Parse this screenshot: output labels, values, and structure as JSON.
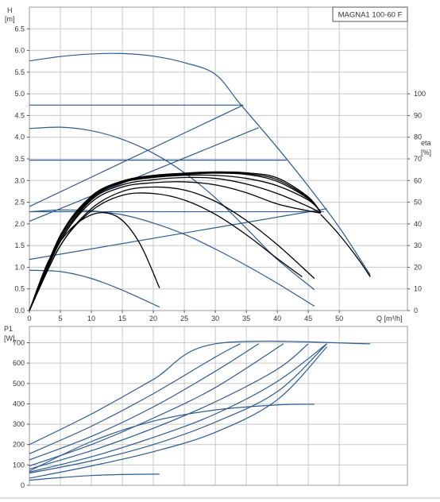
{
  "chart_data": [
    {
      "type": "line",
      "title": "MAGNA1 100-60 F",
      "xlabel": "Q [m³/h]",
      "ylabel_line1": "H",
      "ylabel_line2": "[m]",
      "y2label_line1": "eta",
      "y2label_line2": "[%]",
      "xlim": [
        0,
        61
      ],
      "ylim": [
        0,
        7
      ],
      "y2lim": [
        0,
        140
      ],
      "x_ticks": [
        0,
        5,
        10,
        15,
        20,
        25,
        30,
        35,
        40,
        45,
        50
      ],
      "y_ticks": [
        0,
        0.5,
        1.0,
        1.5,
        2.0,
        2.5,
        3.0,
        3.5,
        4.0,
        4.5,
        5.0,
        5.5,
        6.0,
        6.5
      ],
      "y_tick_labels": [
        "0.0",
        "0.5",
        "1.0",
        "1.5",
        "2.0",
        "2.5",
        "3.0",
        "3.5",
        "4.0",
        "4.5",
        "5.0",
        "5.5",
        "6.0",
        "6.5"
      ],
      "y2_ticks": [
        0,
        10,
        20,
        30,
        40,
        50,
        60,
        70,
        80,
        90,
        100
      ],
      "grid": true,
      "colors": {
        "head": "#2d5c8f",
        "efficiency": "#000000"
      },
      "series": [
        {
          "group": "head",
          "x": [
            0,
            5,
            10,
            15,
            20,
            25,
            30,
            34,
            40,
            45,
            50,
            55
          ],
          "y": [
            5.76,
            5.86,
            5.92,
            5.93,
            5.87,
            5.72,
            5.45,
            4.77,
            3.76,
            2.87,
            1.92,
            0.82
          ]
        },
        {
          "group": "head",
          "x": [
            0,
            34.5
          ],
          "y": [
            4.74,
            4.74
          ]
        },
        {
          "group": "head",
          "x": [
            0,
            41.5
          ],
          "y": [
            3.47,
            3.47
          ]
        },
        {
          "group": "head",
          "x": [
            0,
            47.5
          ],
          "y": [
            2.28,
            2.28
          ]
        },
        {
          "group": "head",
          "x": [
            0,
            34.5
          ],
          "y": [
            2.4,
            4.74
          ]
        },
        {
          "group": "head",
          "x": [
            0,
            37
          ],
          "y": [
            2.06,
            4.22
          ]
        },
        {
          "group": "head",
          "x": [
            0,
            48
          ],
          "y": [
            1.18,
            2.35
          ]
        },
        {
          "group": "head",
          "x": [
            0,
            5,
            10,
            15,
            20,
            25,
            30,
            35,
            40,
            46
          ],
          "y": [
            4.2,
            4.23,
            4.15,
            3.95,
            3.63,
            3.18,
            2.6,
            1.9,
            1.18,
            0.48
          ]
        },
        {
          "group": "head",
          "x": [
            0,
            5,
            10,
            15,
            21
          ],
          "y": [
            0.93,
            0.9,
            0.74,
            0.47,
            0.08
          ]
        },
        {
          "group": "head",
          "x": [
            0,
            5,
            10,
            15,
            20,
            25,
            30,
            35,
            40,
            46
          ],
          "y": [
            2.28,
            2.32,
            2.3,
            2.21,
            2.02,
            1.76,
            1.42,
            1.04,
            0.63,
            0.1
          ]
        },
        {
          "group": "efficiency",
          "x": [
            0,
            3,
            6,
            9,
            12,
            15,
            18,
            21
          ],
          "y": [
            0,
            1.12,
            1.78,
            2.14,
            2.26,
            2.08,
            1.5,
            0.52
          ]
        },
        {
          "group": "efficiency",
          "x": [
            0,
            5,
            10,
            15,
            20,
            25,
            30,
            35,
            40,
            44
          ],
          "y": [
            0,
            1.5,
            2.3,
            2.66,
            2.7,
            2.55,
            2.22,
            1.75,
            1.2,
            0.78
          ]
        },
        {
          "group": "efficiency",
          "x": [
            0,
            5,
            10,
            15,
            20,
            25,
            30,
            35,
            40,
            46
          ],
          "y": [
            0,
            1.5,
            2.35,
            2.75,
            2.85,
            2.78,
            2.52,
            2.08,
            1.52,
            0.74
          ]
        },
        {
          "group": "efficiency",
          "x": [
            0,
            5,
            10,
            15,
            20,
            25,
            30,
            35,
            40,
            45,
            47
          ],
          "y": [
            0,
            1.6,
            2.5,
            2.85,
            2.95,
            2.97,
            2.9,
            2.72,
            2.46,
            2.3,
            2.25
          ]
        },
        {
          "group": "efficiency",
          "x": [
            0,
            5,
            10,
            15,
            20,
            25,
            30,
            35,
            40,
            45,
            47
          ],
          "y": [
            0,
            1.6,
            2.55,
            2.9,
            3.02,
            3.07,
            3.05,
            2.92,
            2.7,
            2.4,
            2.25
          ]
        },
        {
          "group": "efficiency",
          "x": [
            0,
            5,
            10,
            15,
            20,
            25,
            30,
            35,
            40,
            45,
            47
          ],
          "y": [
            0,
            1.65,
            2.58,
            2.95,
            3.07,
            3.12,
            3.12,
            3.05,
            2.88,
            2.55,
            2.28
          ]
        },
        {
          "group": "efficiency",
          "x": [
            0,
            5,
            10,
            15,
            20,
            25,
            30,
            35,
            40,
            45,
            47
          ],
          "y": [
            0,
            1.7,
            2.6,
            2.96,
            3.08,
            3.14,
            3.17,
            3.14,
            2.98,
            2.58,
            2.28
          ]
        },
        {
          "group": "efficiency",
          "x": [
            0,
            5,
            10,
            15,
            20,
            25,
            30,
            35,
            40,
            45,
            47
          ],
          "y": [
            0,
            1.72,
            2.62,
            2.98,
            3.1,
            3.15,
            3.18,
            3.16,
            3.02,
            2.6,
            2.28
          ]
        },
        {
          "group": "efficiency",
          "x": [
            0,
            5,
            10,
            15,
            20,
            25,
            30,
            35,
            40,
            45,
            47
          ],
          "y": [
            0,
            1.74,
            2.64,
            2.99,
            3.12,
            3.17,
            3.2,
            3.18,
            3.06,
            2.62,
            2.26
          ]
        },
        {
          "group": "efficiency",
          "x": [
            47,
            50,
            53,
            55
          ],
          "y": [
            2.22,
            1.75,
            1.2,
            0.78
          ]
        }
      ]
    },
    {
      "type": "line",
      "ylabel_line1": "P1",
      "ylabel_line2": "[W]",
      "xlim": [
        0,
        61
      ],
      "ylim": [
        0,
        780
      ],
      "y_ticks": [
        0,
        100,
        200,
        300,
        400,
        500,
        600,
        700
      ],
      "grid": true,
      "colors": {
        "power": "#2d5c8f"
      },
      "series": [
        {
          "group": "power",
          "x": [
            0,
            10,
            20,
            30,
            55
          ],
          "y": [
            200,
            350,
            520,
            695,
            695
          ]
        },
        {
          "group": "power",
          "x": [
            0,
            10,
            20,
            30,
            34
          ],
          "y": [
            155,
            290,
            450,
            630,
            695
          ]
        },
        {
          "group": "power",
          "x": [
            0,
            10,
            20,
            30,
            37
          ],
          "y": [
            125,
            240,
            385,
            560,
            695
          ]
        },
        {
          "group": "power",
          "x": [
            0,
            10,
            20,
            30,
            41
          ],
          "y": [
            95,
            200,
            330,
            480,
            695
          ]
        },
        {
          "group": "power",
          "x": [
            0,
            10,
            20,
            30,
            40,
            45
          ],
          "y": [
            80,
            170,
            280,
            410,
            570,
            695
          ]
        },
        {
          "group": "power",
          "x": [
            0,
            10,
            20,
            30,
            40,
            48
          ],
          "y": [
            65,
            140,
            235,
            350,
            510,
            695
          ]
        },
        {
          "group": "power",
          "x": [
            0,
            10,
            20,
            30,
            40,
            48
          ],
          "y": [
            60,
            120,
            200,
            310,
            460,
            695
          ]
        },
        {
          "group": "power",
          "x": [
            0,
            10,
            20,
            30,
            40,
            46
          ],
          "y": [
            70,
            215,
            315,
            370,
            395,
            398
          ]
        },
        {
          "group": "power",
          "x": [
            0,
            10,
            20,
            30,
            40,
            48
          ],
          "y": [
            35,
            95,
            165,
            260,
            420,
            680
          ]
        },
        {
          "group": "power",
          "x": [
            0,
            5,
            10,
            15,
            21
          ],
          "y": [
            25,
            38,
            48,
            53,
            55
          ]
        }
      ]
    }
  ]
}
